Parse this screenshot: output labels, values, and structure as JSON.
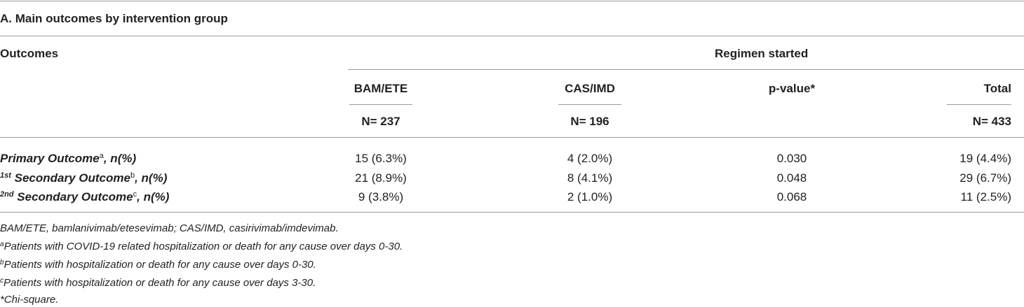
{
  "table": {
    "title": "A. Main outcomes by intervention group",
    "outcomes_header": "Outcomes",
    "regimen_header": "Regimen started",
    "columns": [
      {
        "label": "BAM/ETE",
        "n": "N= 237"
      },
      {
        "label": "CAS/IMD",
        "n": "N= 196"
      },
      {
        "label": "p-value*",
        "n": ""
      },
      {
        "label": "Total",
        "n": "N= 433"
      }
    ],
    "rows": [
      {
        "prefix_sup": "",
        "name": "Primary Outcome",
        "mark": "a",
        "suffix": ", n(%)",
        "values": [
          "15 (6.3%)",
          "4 (2.0%)",
          "0.030",
          "19 (4.4%)"
        ]
      },
      {
        "prefix_sup": "1st",
        "name": " Secondary Outcome",
        "mark": "b",
        "suffix": ", n(%)",
        "values": [
          "21 (8.9%)",
          "8 (4.1%)",
          "0.048",
          "29 (6.7%)"
        ]
      },
      {
        "prefix_sup": "2nd",
        "name": " Secondary Outcome",
        "mark": "c",
        "suffix": ", n(%)",
        "values": [
          "9 (3.8%)",
          "2 (1.0%)",
          "0.068",
          "11 (2.5%)"
        ]
      }
    ],
    "footnotes": [
      {
        "mark": "",
        "text": "BAM/ETE, bamlanivimab/etesevimab; CAS/IMD, casirivimab/imdevimab."
      },
      {
        "mark": "a",
        "text": "Patients with COVID-19 related hospitalization or death for any cause over days 0-30."
      },
      {
        "mark": "b",
        "text": "Patients with hospitalization or death for any cause over days 0-30."
      },
      {
        "mark": "c",
        "text": "Patients with hospitalization or death for any cause over days 3-30."
      },
      {
        "mark": "",
        "text": "*Chi-square."
      }
    ]
  }
}
